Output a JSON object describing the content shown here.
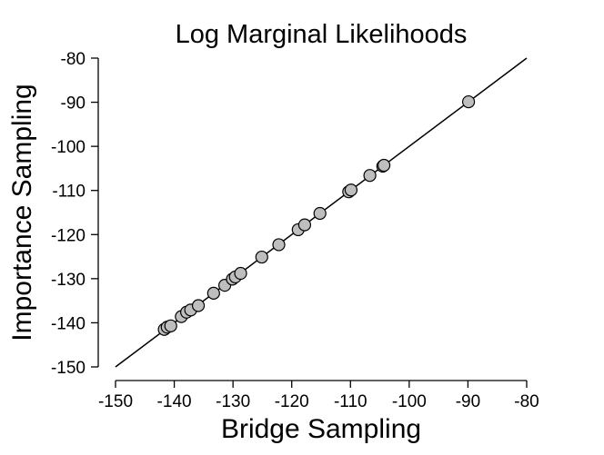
{
  "chart_data": {
    "type": "scatter",
    "title": "Log Marginal Likelihoods",
    "xlabel": "Bridge Sampling",
    "ylabel": "Importance Sampling",
    "xlim": [
      -150,
      -80
    ],
    "ylim": [
      -150,
      -80
    ],
    "x_ticks": [
      -150,
      -140,
      -130,
      -120,
      -110,
      -100,
      -90,
      -80
    ],
    "y_ticks": [
      -150,
      -140,
      -130,
      -120,
      -110,
      -100,
      -90,
      -80
    ],
    "x_tick_labels": [
      "-150",
      "-140",
      "-130",
      "-120",
      "-110",
      "-100",
      "-90",
      "-80"
    ],
    "y_tick_labels": [
      "-150",
      "-140",
      "-130",
      "-120",
      "-110",
      "-100",
      "-90",
      "-80"
    ],
    "reference_line": {
      "type": "identity",
      "x": [
        -150,
        -80
      ],
      "y": [
        -150,
        -80
      ]
    },
    "grid": false,
    "point_color": "#bebebe",
    "point_edge_color": "#000000",
    "line_color": "#000000",
    "points": [
      {
        "x": -141.7,
        "y": -141.5
      },
      {
        "x": -141.2,
        "y": -141.0
      },
      {
        "x": -140.6,
        "y": -140.7
      },
      {
        "x": -138.8,
        "y": -138.6
      },
      {
        "x": -137.9,
        "y": -137.6
      },
      {
        "x": -137.2,
        "y": -137.1
      },
      {
        "x": -135.9,
        "y": -136.1
      },
      {
        "x": -133.3,
        "y": -133.3
      },
      {
        "x": -131.4,
        "y": -131.5
      },
      {
        "x": -130.1,
        "y": -130.1
      },
      {
        "x": -129.6,
        "y": -129.6
      },
      {
        "x": -128.7,
        "y": -128.8
      },
      {
        "x": -125.1,
        "y": -125.1
      },
      {
        "x": -122.2,
        "y": -122.3
      },
      {
        "x": -118.9,
        "y": -118.9
      },
      {
        "x": -117.8,
        "y": -117.8
      },
      {
        "x": -115.2,
        "y": -115.2
      },
      {
        "x": -110.3,
        "y": -110.3
      },
      {
        "x": -109.9,
        "y": -109.9
      },
      {
        "x": -106.7,
        "y": -106.6
      },
      {
        "x": -104.5,
        "y": -104.5
      },
      {
        "x": -104.3,
        "y": -104.3
      },
      {
        "x": -89.9,
        "y": -89.9
      }
    ]
  }
}
